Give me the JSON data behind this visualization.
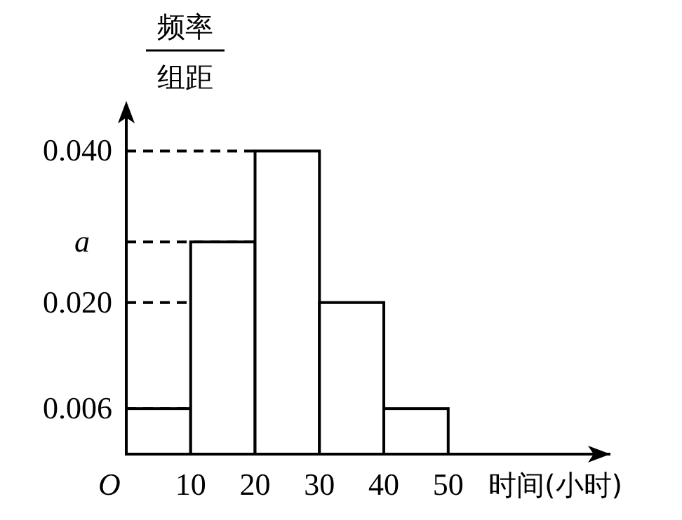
{
  "chart_data": {
    "type": "histogram",
    "bins": [
      0,
      10,
      20,
      30,
      40,
      50
    ],
    "values": [
      0.006,
      0.028,
      0.04,
      0.02,
      0.006
    ],
    "color": "#ffffff",
    "xlim": [
      0,
      75.2
    ],
    "ylim": [
      0,
      0.0455
    ],
    "xticks": [
      {
        "value": 0,
        "label": "O"
      },
      10,
      20,
      30,
      40,
      50
    ],
    "yticks": [
      {
        "value": 0.006,
        "label": "0.006"
      },
      {
        "value": 0.02,
        "label": "0.020"
      },
      {
        "value": 0.028,
        "label": "a"
      },
      {
        "value": 0.04,
        "label": "0.040"
      }
    ],
    "xlabel": "时间(小时)",
    "ylabel": "频率",
    "annotations": [
      "组距"
    ],
    "ref_lines": [
      {
        "axis": "y",
        "value": 0.006,
        "line_style": "dashed"
      },
      {
        "axis": "y",
        "value": 0.02,
        "line_style": "dashed"
      },
      {
        "axis": "y",
        "value": 0.028,
        "line_style": "dashed"
      },
      {
        "axis": "y",
        "value": 0.04,
        "line_style": "dashed"
      }
    ],
    "grid": false
  }
}
